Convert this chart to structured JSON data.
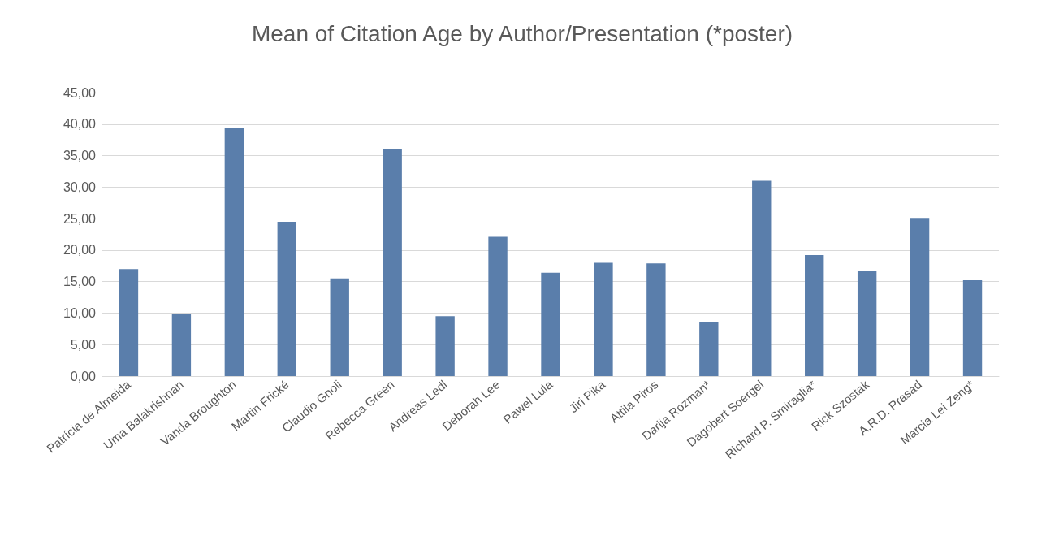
{
  "chart_data": {
    "type": "bar",
    "title": "Mean of Citation Age by Author/Presentation (*poster)",
    "categories": [
      "Patrícia de Almeida",
      "Uma Balakrishnan",
      "Vanda Broughton",
      "Martin Frické",
      "Claudio Gnoli",
      "Rebecca Green",
      "Andreas Ledl",
      "Deborah Lee",
      "Paweł Lula",
      "Jiri Pika",
      "Attila Piros",
      "Darija Rozman*",
      "Dagobert Soergel",
      "Richard P. Smiraglia*",
      "Rick Szostak",
      "A.R.D. Prasad",
      "Marcia Lei Zeng*"
    ],
    "values": [
      17.0,
      9.9,
      39.4,
      24.5,
      15.5,
      36.0,
      9.5,
      22.1,
      16.4,
      18.0,
      17.9,
      8.6,
      31.0,
      19.2,
      16.7,
      25.1,
      15.2
    ],
    "color": "#5a7eab",
    "ylim": [
      0,
      45
    ],
    "yticks": [
      {
        "value": 0,
        "label": "0,00"
      },
      {
        "value": 5,
        "label": "5,00"
      },
      {
        "value": 10,
        "label": "10,00"
      },
      {
        "value": 15,
        "label": "15,00"
      },
      {
        "value": 20,
        "label": "20,00"
      },
      {
        "value": 25,
        "label": "25,00"
      },
      {
        "value": 30,
        "label": "30,00"
      },
      {
        "value": 35,
        "label": "35,00"
      },
      {
        "value": 40,
        "label": "40,00"
      },
      {
        "value": 45,
        "label": "45,00"
      }
    ],
    "grid": "y"
  }
}
